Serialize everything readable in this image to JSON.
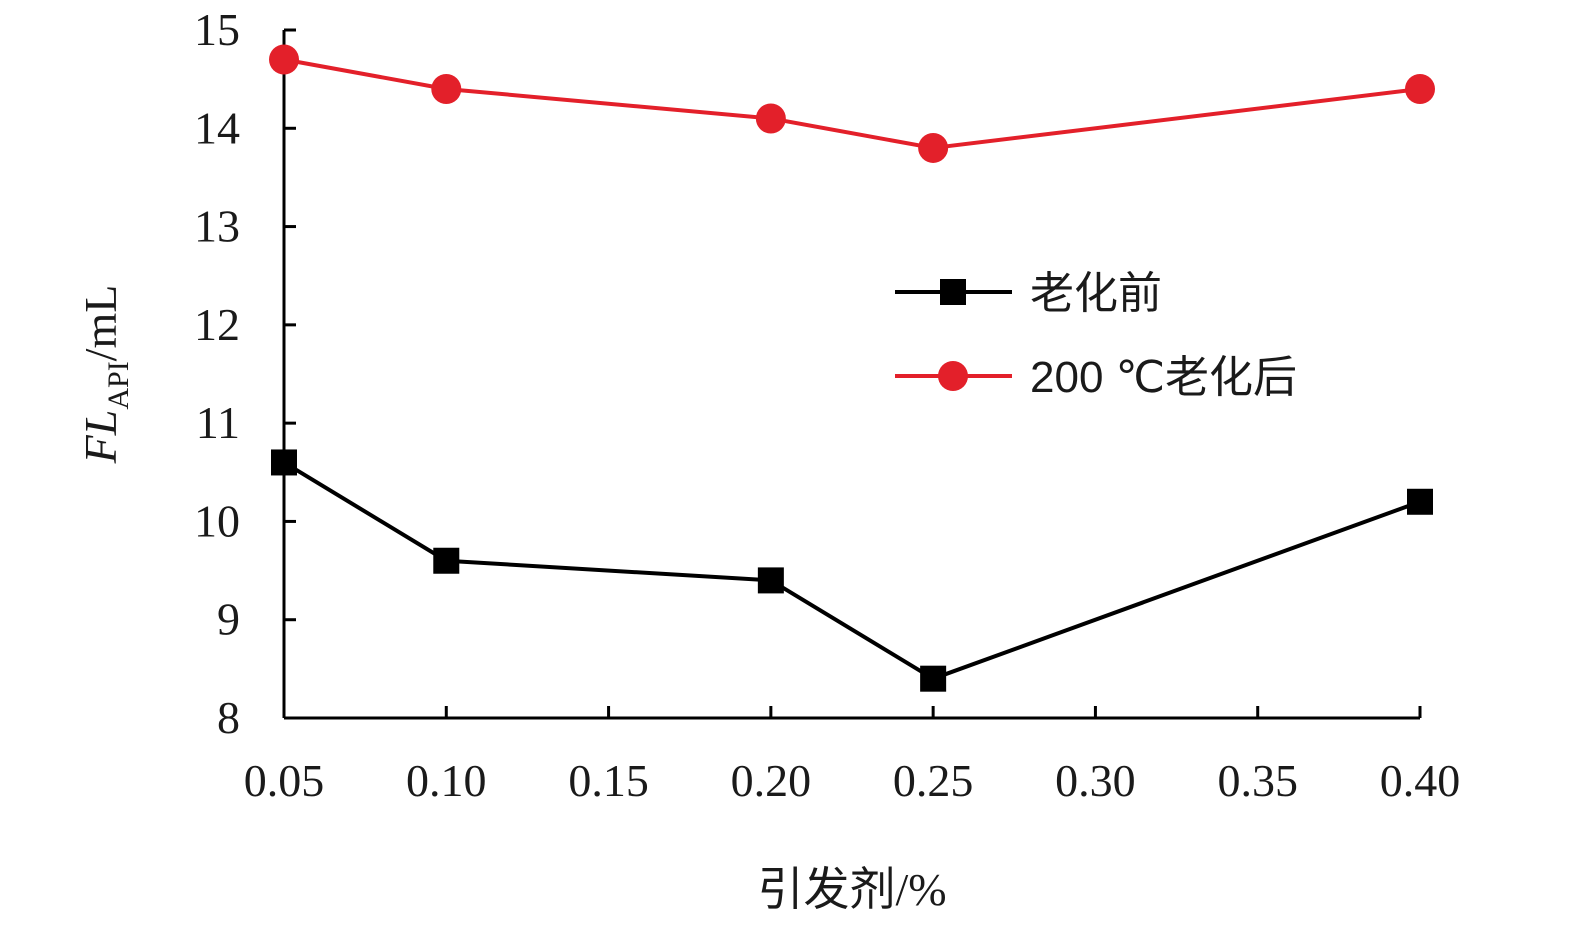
{
  "chart_data": {
    "type": "line",
    "x_tick_labels": [
      "0.05",
      "0.10",
      "0.15",
      "0.20",
      "0.25",
      "0.30",
      "0.35",
      "0.40"
    ],
    "y_tick_labels": [
      "8",
      "9",
      "10",
      "11",
      "12",
      "13",
      "14",
      "15"
    ],
    "xlim": [
      0.05,
      0.4
    ],
    "ylim": [
      8,
      15
    ],
    "xlabel": "引发剂/%",
    "ylabel": {
      "main": "FL",
      "sub": "API",
      "unit": "/mL"
    },
    "grid": false,
    "legend_position": "right",
    "series": [
      {
        "name": "老化前",
        "marker": "square",
        "color": "#000000",
        "x": [
          0.05,
          0.1,
          0.2,
          0.25,
          0.4
        ],
        "y": [
          10.6,
          9.6,
          9.4,
          8.4,
          10.2
        ]
      },
      {
        "name": "200 ℃老化后",
        "marker": "circle",
        "color": "#e3202a",
        "x": [
          0.05,
          0.1,
          0.2,
          0.25,
          0.4
        ],
        "y": [
          14.7,
          14.4,
          14.1,
          13.8,
          14.4
        ]
      }
    ]
  }
}
